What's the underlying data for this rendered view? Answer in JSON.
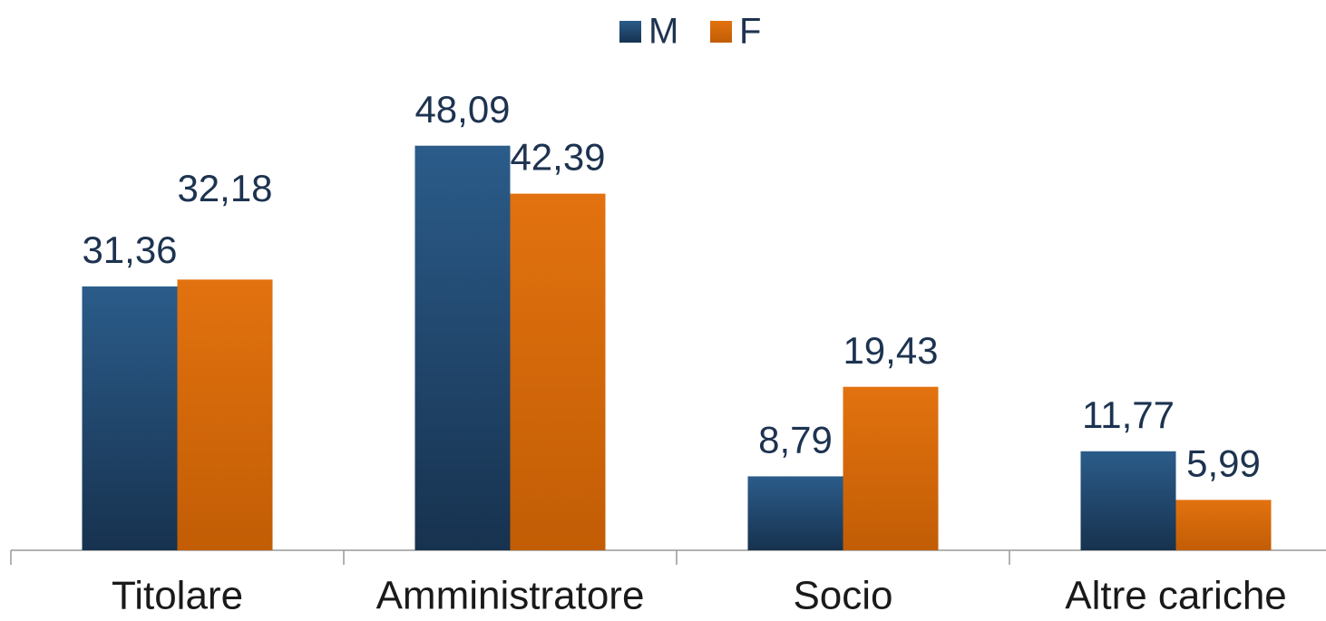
{
  "chart_data": {
    "type": "bar",
    "categories": [
      "Titolare",
      "Amministratore",
      "Socio",
      "Altre cariche"
    ],
    "series": [
      {
        "name": "M",
        "color": "#245380",
        "values": [
          31.36,
          48.09,
          8.79,
          11.77
        ],
        "value_labels": [
          "31,36",
          "48,09",
          "8,79",
          "11,77"
        ]
      },
      {
        "name": "F",
        "color": "#d96a0a",
        "values": [
          32.18,
          42.39,
          19.43,
          5.99
        ],
        "value_labels": [
          "32,18",
          "42,39",
          "19,43",
          "5,99"
        ]
      }
    ],
    "ylim": [
      0,
      50
    ],
    "legend": "top"
  }
}
